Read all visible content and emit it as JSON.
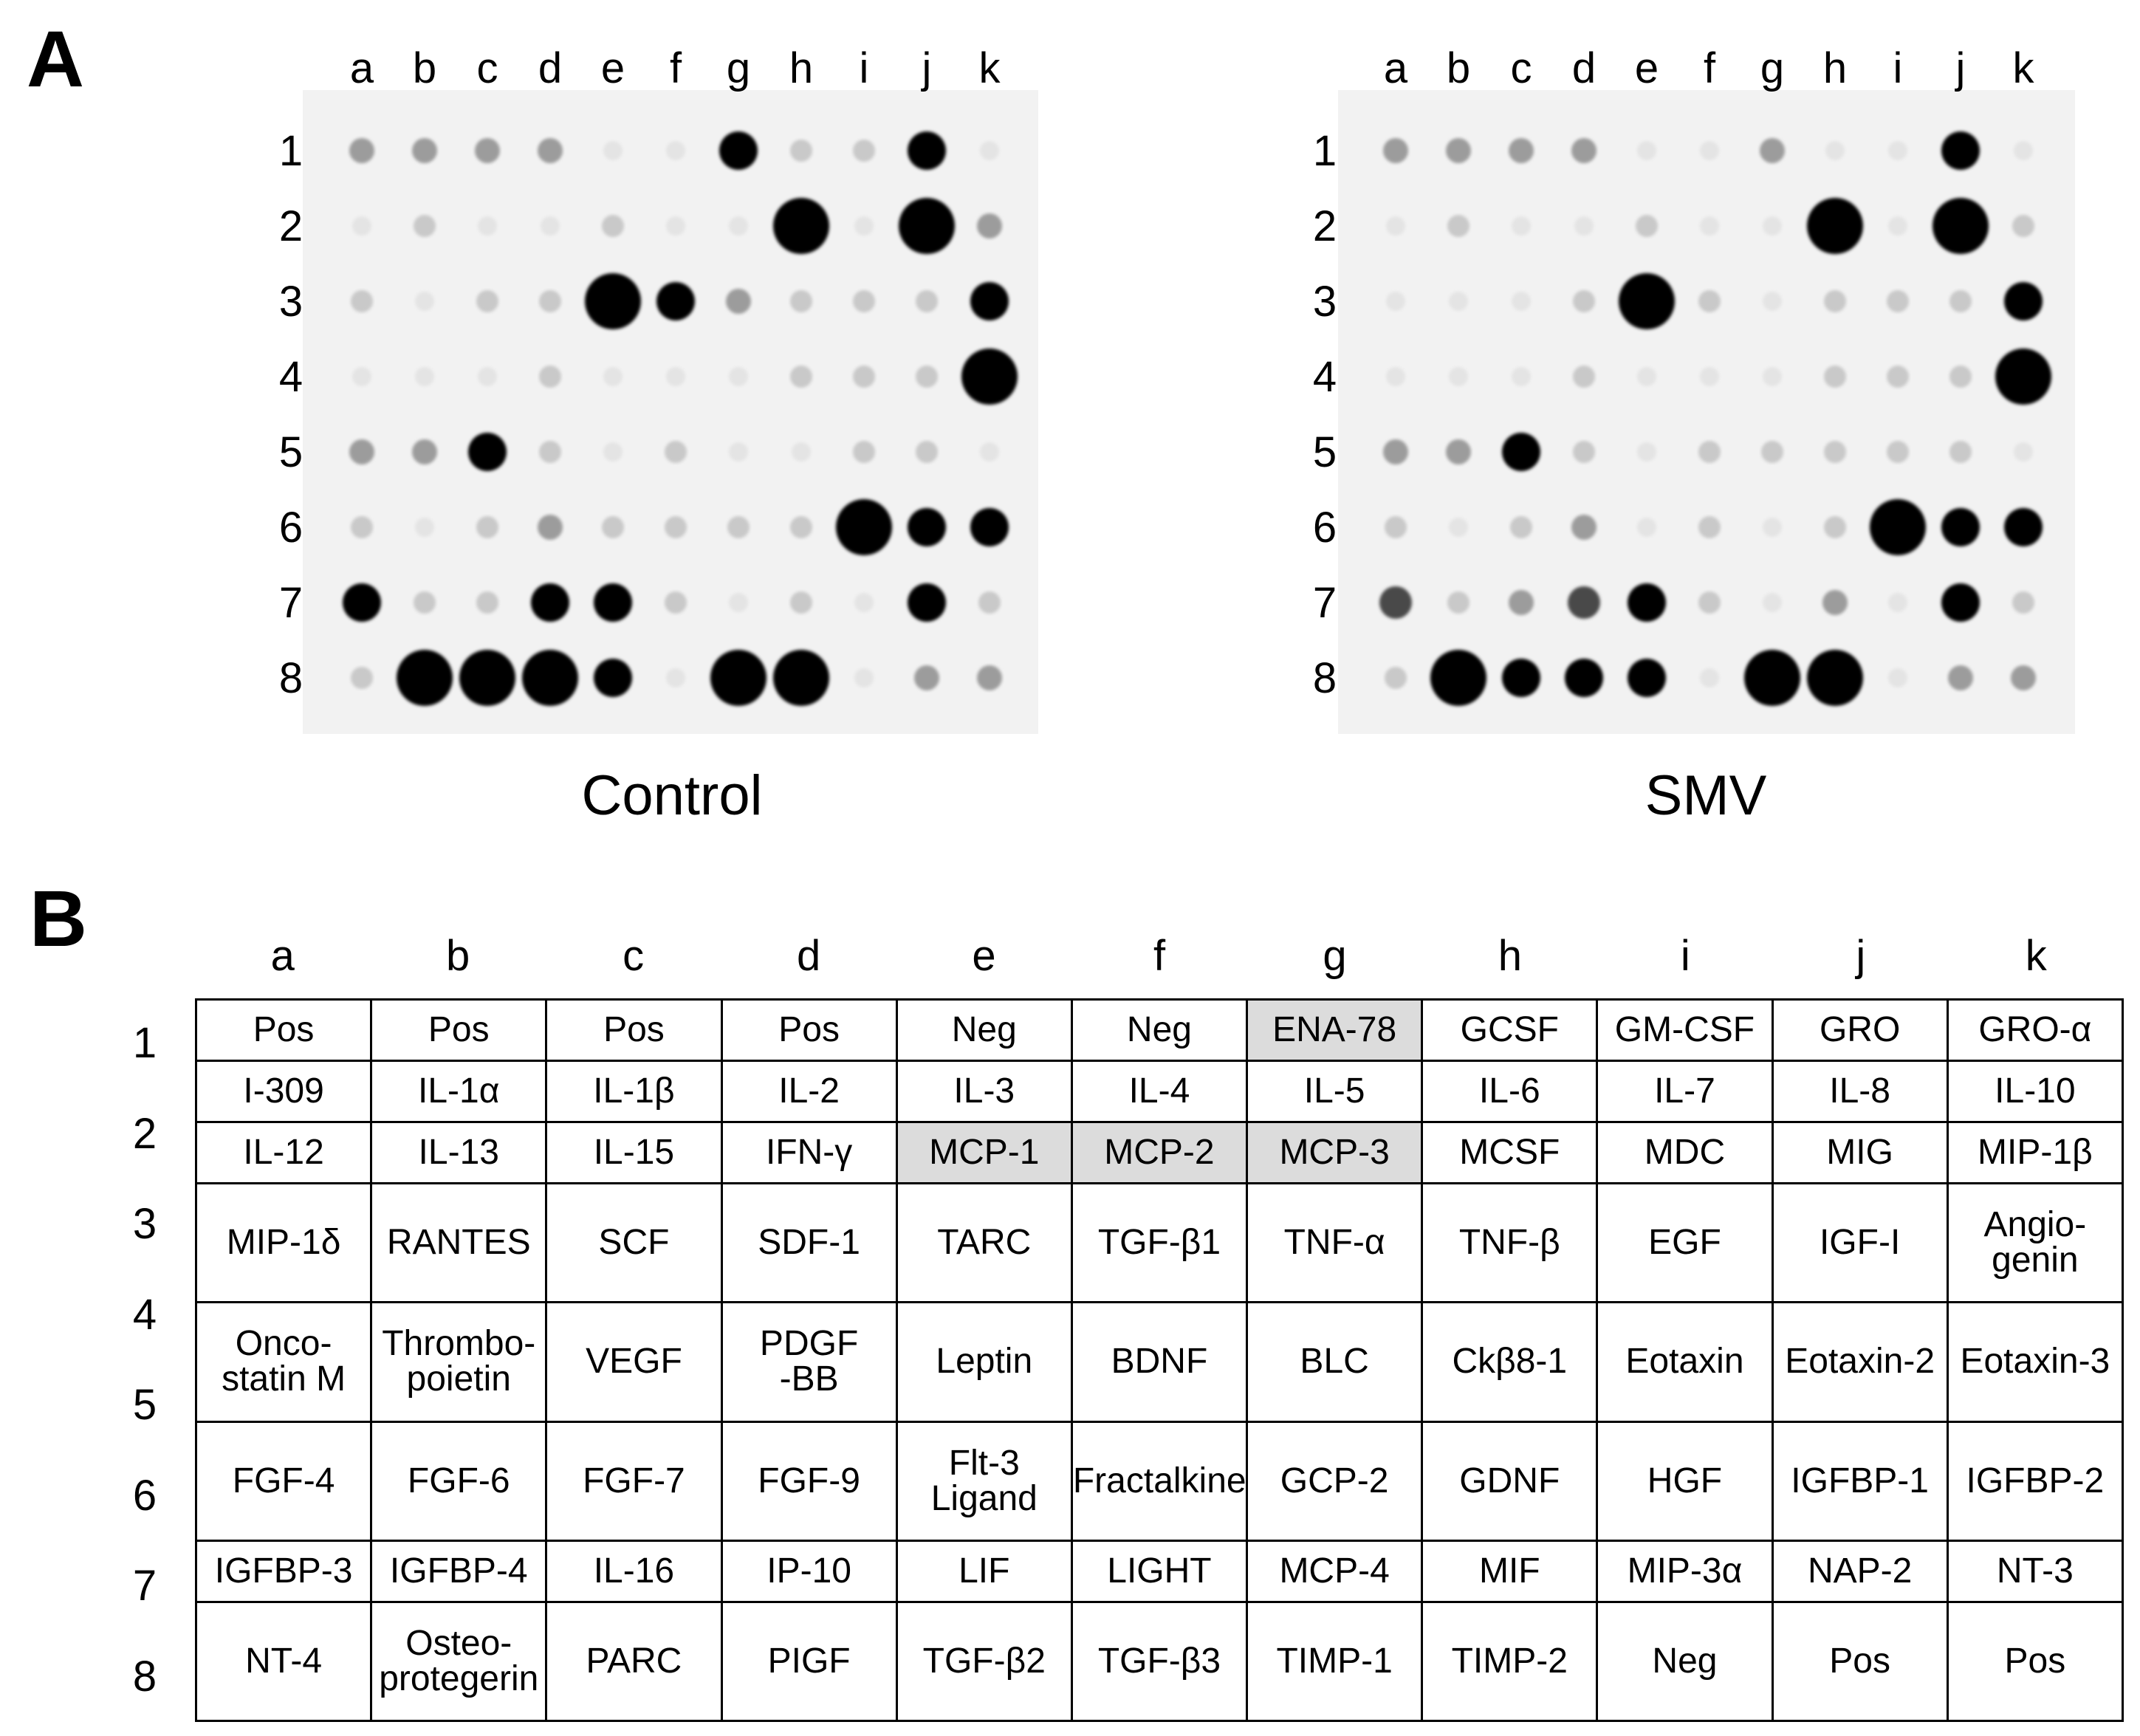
{
  "panel_a_letter": "A",
  "panel_b_letter": "B",
  "blot_labels": {
    "control": "Control",
    "smv": "SMV"
  },
  "columns": [
    "a",
    "b",
    "c",
    "d",
    "e",
    "f",
    "g",
    "h",
    "i",
    "j",
    "k"
  ],
  "rows": [
    "1",
    "2",
    "3",
    "4",
    "5",
    "6",
    "7",
    "8"
  ],
  "blot_intensity_note_levels": {
    "control": [
      [
        2,
        2,
        2,
        2,
        0,
        0,
        4,
        1,
        1,
        4,
        0
      ],
      [
        0,
        1,
        0,
        0,
        1,
        0,
        0,
        5,
        0,
        5,
        2
      ],
      [
        1,
        0,
        1,
        1,
        5,
        4,
        2,
        1,
        1,
        1,
        4
      ],
      [
        0,
        0,
        0,
        1,
        0,
        0,
        0,
        1,
        1,
        1,
        5
      ],
      [
        2,
        2,
        4,
        1,
        0,
        1,
        0,
        0,
        1,
        1,
        0
      ],
      [
        1,
        0,
        1,
        2,
        1,
        1,
        1,
        1,
        5,
        4,
        4
      ],
      [
        4,
        1,
        1,
        4,
        4,
        1,
        0,
        1,
        0,
        4,
        1
      ],
      [
        1,
        5,
        5,
        5,
        4,
        0,
        5,
        5,
        0,
        2,
        2
      ]
    ],
    "smv": [
      [
        2,
        2,
        2,
        2,
        0,
        0,
        2,
        0,
        0,
        4,
        0
      ],
      [
        0,
        1,
        0,
        0,
        1,
        0,
        0,
        5,
        0,
        5,
        1
      ],
      [
        0,
        0,
        0,
        1,
        5,
        1,
        0,
        1,
        1,
        1,
        4
      ],
      [
        0,
        0,
        0,
        1,
        0,
        0,
        0,
        1,
        1,
        1,
        5
      ],
      [
        2,
        2,
        4,
        1,
        0,
        1,
        1,
        1,
        1,
        1,
        0
      ],
      [
        1,
        0,
        1,
        2,
        0,
        1,
        0,
        1,
        5,
        4,
        4
      ],
      [
        3,
        1,
        2,
        3,
        4,
        1,
        0,
        2,
        0,
        4,
        1
      ],
      [
        1,
        5,
        4,
        4,
        4,
        0,
        5,
        5,
        0,
        2,
        2
      ]
    ]
  },
  "table": {
    "highlight_color": "#dcdcdc",
    "rows": [
      {
        "label": "1",
        "cells": [
          {
            "text": "Pos"
          },
          {
            "text": "Pos"
          },
          {
            "text": "Pos"
          },
          {
            "text": "Pos"
          },
          {
            "text": "Neg"
          },
          {
            "text": "Neg"
          },
          {
            "text": "ENA-78",
            "hl": true
          },
          {
            "text": "GCSF"
          },
          {
            "text": "GM-CSF"
          },
          {
            "text": "GRO"
          },
          {
            "text": "GRO-α"
          }
        ]
      },
      {
        "label": "2",
        "cells": [
          {
            "text": "I-309"
          },
          {
            "text": "IL-1α"
          },
          {
            "text": "IL-1β"
          },
          {
            "text": "IL-2"
          },
          {
            "text": "IL-3"
          },
          {
            "text": "IL-4"
          },
          {
            "text": "IL-5"
          },
          {
            "text": "IL-6"
          },
          {
            "text": "IL-7"
          },
          {
            "text": "IL-8"
          },
          {
            "text": "IL-10"
          }
        ]
      },
      {
        "label": "3",
        "cells": [
          {
            "text": "IL-12"
          },
          {
            "text": "IL-13"
          },
          {
            "text": "IL-15"
          },
          {
            "text": "IFN-γ"
          },
          {
            "text": "MCP-1",
            "hl": true
          },
          {
            "text": "MCP-2",
            "hl": true
          },
          {
            "text": "MCP-3",
            "hl": true
          },
          {
            "text": "MCSF"
          },
          {
            "text": "MDC"
          },
          {
            "text": "MIG"
          },
          {
            "text": "MIP-1β"
          }
        ]
      },
      {
        "label": "4",
        "cells": [
          {
            "text": "MIP-1δ"
          },
          {
            "text": "RANTES"
          },
          {
            "text": "SCF"
          },
          {
            "text": "SDF-1"
          },
          {
            "text": "TARC"
          },
          {
            "text": "TGF-β1"
          },
          {
            "text": "TNF-α"
          },
          {
            "text": "TNF-β"
          },
          {
            "text": "EGF"
          },
          {
            "text": "IGF-I"
          },
          {
            "text": "Angio-\ngenin"
          }
        ]
      },
      {
        "label": "5",
        "cells": [
          {
            "text": "Onco-\nstatin M"
          },
          {
            "text": "Thrombo-\npoietin"
          },
          {
            "text": "VEGF"
          },
          {
            "text": "PDGF\n-BB"
          },
          {
            "text": "Leptin"
          },
          {
            "text": "BDNF"
          },
          {
            "text": "BLC"
          },
          {
            "text": "Ckβ8-1"
          },
          {
            "text": "Eotaxin"
          },
          {
            "text": "Eotaxin-2"
          },
          {
            "text": "Eotaxin-3"
          }
        ]
      },
      {
        "label": "6",
        "cells": [
          {
            "text": "FGF-4"
          },
          {
            "text": "FGF-6"
          },
          {
            "text": "FGF-7"
          },
          {
            "text": "FGF-9"
          },
          {
            "text": "Flt-3\nLigand"
          },
          {
            "text": "Fractalkine"
          },
          {
            "text": "GCP-2"
          },
          {
            "text": "GDNF"
          },
          {
            "text": "HGF"
          },
          {
            "text": "IGFBP-1"
          },
          {
            "text": "IGFBP-2"
          }
        ]
      },
      {
        "label": "7",
        "cells": [
          {
            "text": "IGFBP-3"
          },
          {
            "text": "IGFBP-4"
          },
          {
            "text": "IL-16"
          },
          {
            "text": "IP-10"
          },
          {
            "text": "LIF"
          },
          {
            "text": "LIGHT"
          },
          {
            "text": "MCP-4"
          },
          {
            "text": "MIF"
          },
          {
            "text": "MIP-3α"
          },
          {
            "text": "NAP-2"
          },
          {
            "text": "NT-3"
          }
        ]
      },
      {
        "label": "8",
        "cells": [
          {
            "text": "NT-4"
          },
          {
            "text": "Osteo-\nprotegerin"
          },
          {
            "text": "PARC"
          },
          {
            "text": "PIGF"
          },
          {
            "text": "TGF-β2"
          },
          {
            "text": "TGF-β3"
          },
          {
            "text": "TIMP-1"
          },
          {
            "text": "TIMP-2"
          },
          {
            "text": "Neg"
          },
          {
            "text": "Pos"
          },
          {
            "text": "Pos"
          }
        ]
      }
    ]
  }
}
